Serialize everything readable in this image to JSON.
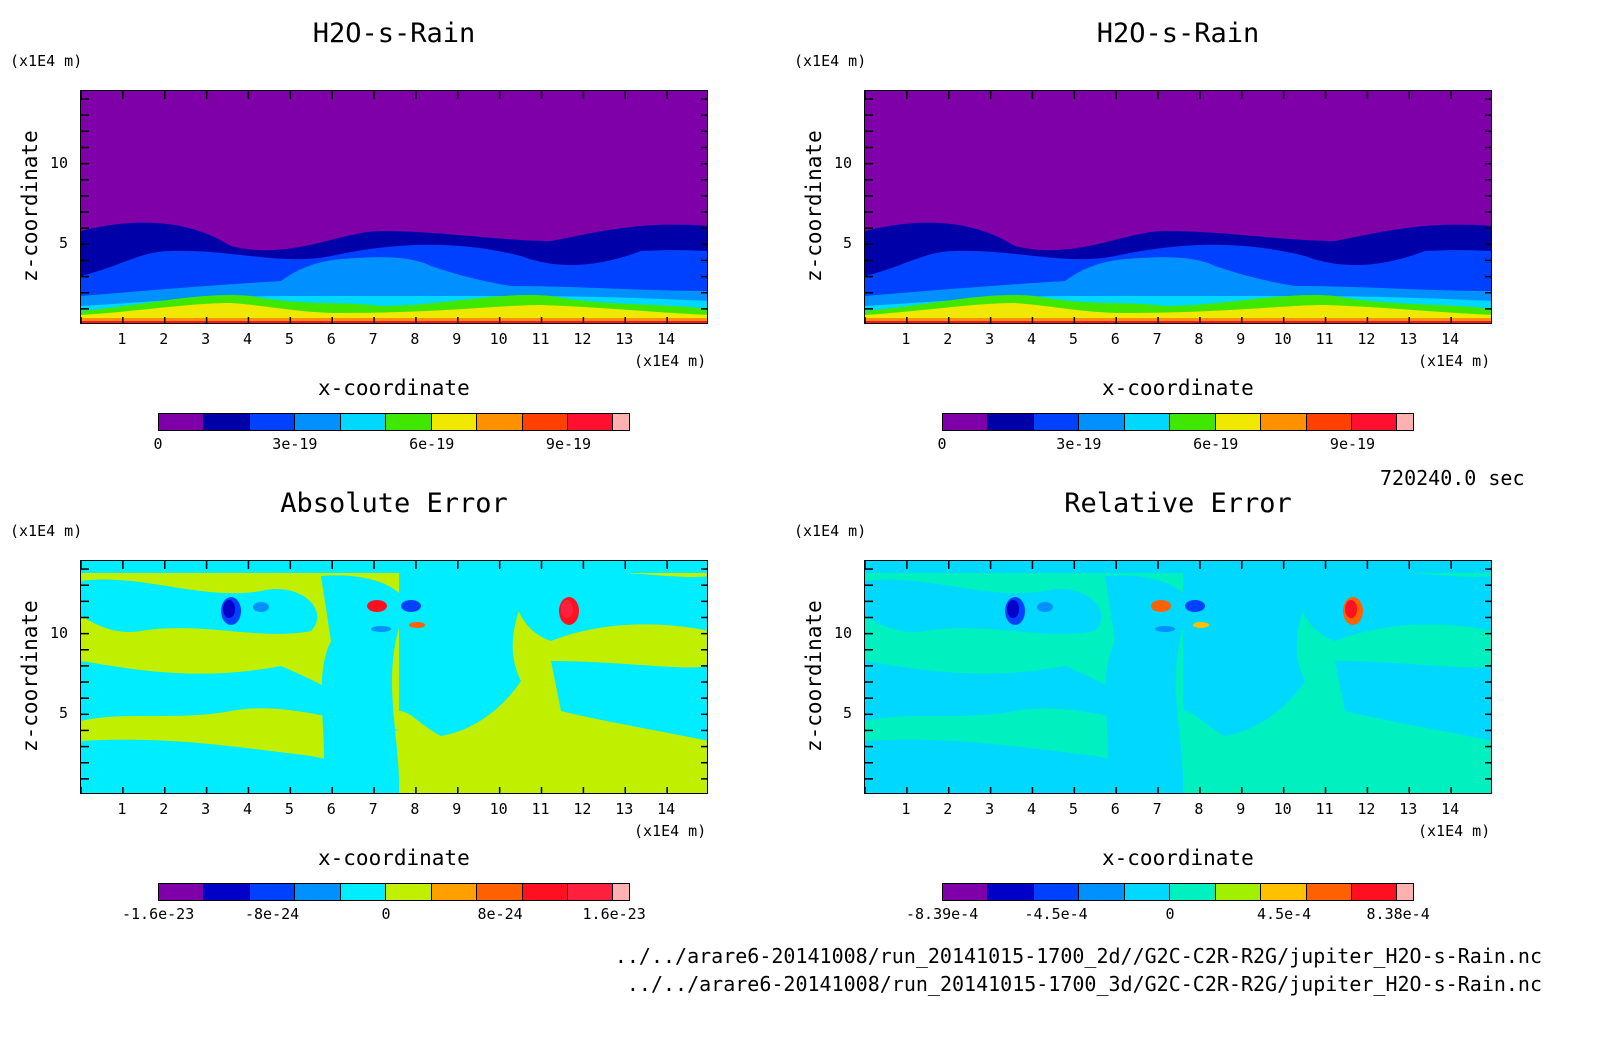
{
  "time_label": "720240.0 sec",
  "files": [
    "../../arare6-20141008/run_20141015-1700_2d//G2C-C2R-R2G/jupiter_H2O-s-Rain.nc",
    "../../arare6-20141008/run_20141015-1700_3d/G2C-C2R-R2G/jupiter_H2O-s-Rain.nc"
  ],
  "chart_data": [
    {
      "type": "heatmap",
      "title": "H2O-s-Rain",
      "xlabel": "x-coordinate",
      "ylabel": "z-coordinate",
      "x_unit": "(x1E4 m)",
      "y_unit": "(x1E4 m)",
      "xlim": [
        0,
        15
      ],
      "ylim": [
        0,
        14.5
      ],
      "x_ticks": [
        "1",
        "2",
        "3",
        "4",
        "5",
        "6",
        "7",
        "8",
        "9",
        "10",
        "11",
        "12",
        "13",
        "14"
      ],
      "y_ticks": [
        "5",
        "10"
      ],
      "colorbar": {
        "labels": [
          "0",
          "3e-19",
          "6e-19",
          "9e-19"
        ],
        "colors": [
          "#7f00a8",
          "#0000a8",
          "#0040ff",
          "#0090ff",
          "#00d8ff",
          "#40e800",
          "#f0e800",
          "#ff9000",
          "#ff4000",
          "#ff1030",
          "#ffb0b0"
        ]
      }
    },
    {
      "type": "heatmap",
      "title": "H2O-s-Rain",
      "xlabel": "x-coordinate",
      "ylabel": "z-coordinate",
      "x_unit": "(x1E4 m)",
      "y_unit": "(x1E4 m)",
      "xlim": [
        0,
        15
      ],
      "ylim": [
        0,
        14.5
      ],
      "x_ticks": [
        "1",
        "2",
        "3",
        "4",
        "5",
        "6",
        "7",
        "8",
        "9",
        "10",
        "11",
        "12",
        "13",
        "14"
      ],
      "y_ticks": [
        "5",
        "10"
      ],
      "colorbar": {
        "labels": [
          "0",
          "3e-19",
          "6e-19",
          "9e-19"
        ],
        "colors": [
          "#7f00a8",
          "#0000a8",
          "#0040ff",
          "#0090ff",
          "#00d8ff",
          "#40e800",
          "#f0e800",
          "#ff9000",
          "#ff4000",
          "#ff1030",
          "#ffb0b0"
        ]
      }
    },
    {
      "type": "heatmap",
      "title": "Absolute Error",
      "xlabel": "x-coordinate",
      "ylabel": "z-coordinate",
      "x_unit": "(x1E4 m)",
      "y_unit": "(x1E4 m)",
      "xlim": [
        0,
        15
      ],
      "ylim": [
        0,
        14.5
      ],
      "x_ticks": [
        "1",
        "2",
        "3",
        "4",
        "5",
        "6",
        "7",
        "8",
        "9",
        "10",
        "11",
        "12",
        "13",
        "14"
      ],
      "y_ticks": [
        "5",
        "10"
      ],
      "colorbar": {
        "labels": [
          "-1.6e-23",
          "-8e-24",
          "0",
          "8e-24",
          "1.6e-23"
        ],
        "colors": [
          "#7f00a8",
          "#0000c8",
          "#0040ff",
          "#0090ff",
          "#00ecff",
          "#c0f000",
          "#ffa000",
          "#ff6000",
          "#ff1020",
          "#ff2040",
          "#ffb0b0"
        ]
      }
    },
    {
      "type": "heatmap",
      "title": "Relative Error",
      "xlabel": "x-coordinate",
      "ylabel": "z-coordinate",
      "x_unit": "(x1E4 m)",
      "y_unit": "(x1E4 m)",
      "xlim": [
        0,
        15
      ],
      "ylim": [
        0,
        14.5
      ],
      "x_ticks": [
        "1",
        "2",
        "3",
        "4",
        "5",
        "6",
        "7",
        "8",
        "9",
        "10",
        "11",
        "12",
        "13",
        "14"
      ],
      "y_ticks": [
        "5",
        "10"
      ],
      "colorbar": {
        "labels": [
          "-8.39e-4",
          "-4.5e-4",
          "0",
          "4.5e-4",
          "8.38e-4"
        ],
        "colors": [
          "#7f00a8",
          "#0000c8",
          "#0040ff",
          "#0090ff",
          "#00d8ff",
          "#00f0c0",
          "#a0f000",
          "#ffc000",
          "#ff6000",
          "#ff1020",
          "#ffb0b0"
        ]
      }
    }
  ]
}
